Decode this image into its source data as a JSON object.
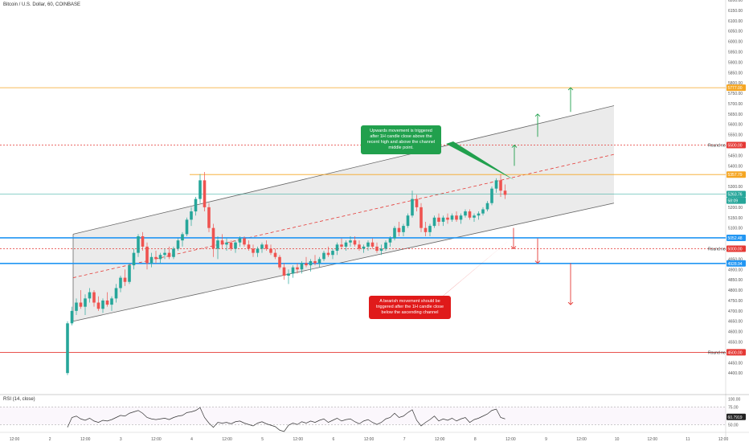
{
  "header": {
    "title": "Bitcoin / U.S. Dollar, 60, COINBASE",
    "rsi_title": "RSI (14, close)"
  },
  "annotations": {
    "upward": "Upwards movement is triggered after 1H candle close above the recent high and above the channel middle point.",
    "bearish": "A bearish movement should be triggered after the 1H candle close below the ascending channel"
  },
  "colors": {
    "up": "#26a69a",
    "down": "#ef5350",
    "orange": "#f5a623",
    "blue": "#2196f3",
    "red": "#e53935",
    "green": "#21a04d",
    "channel_fill": "#e6e6e6",
    "channel_line": "#666666"
  },
  "chart_data": {
    "type": "candlestick",
    "symbol": "Bitcoin / U.S. Dollar",
    "interval": "60",
    "exchange": "COINBASE",
    "ylim": [
      4300,
      6200
    ],
    "y_ticks": [
      4400,
      4450,
      4500,
      4550,
      4600,
      4650,
      4700,
      4750,
      4800,
      4850,
      4900,
      4950,
      5000,
      5050,
      5100,
      5150,
      5200,
      5250,
      5300,
      5350,
      5400,
      5450,
      5500,
      5550,
      5600,
      5650,
      5700,
      5750,
      5800,
      5850,
      5900,
      5950,
      6000,
      6050,
      6100,
      6150,
      6200
    ],
    "x_ticks": [
      "12:00",
      "2",
      "12:00",
      "3",
      "12:00",
      "4",
      "12:00",
      "5",
      "12:00",
      "6",
      "12:00",
      "7",
      "12:00",
      "8",
      "12:00",
      "9",
      "12:00",
      "10",
      "12:00",
      "11",
      "12:00"
    ],
    "price_labels": [
      {
        "text": "5777.00",
        "value": 5777,
        "color": "#f5a623"
      },
      {
        "text": "5500.00",
        "value": 5500,
        "color": "#e53935"
      },
      {
        "text": "5357.79",
        "value": 5357.79,
        "color": "#f5a623"
      },
      {
        "text": "5263.76",
        "value": 5263.76,
        "color": "#26a69a"
      },
      {
        "text": "58:09",
        "value": 5232,
        "color": "#26a69a"
      },
      {
        "text": "5052.48",
        "value": 5052.48,
        "color": "#2196f3"
      },
      {
        "text": "5000.00",
        "value": 5000,
        "color": "#e53935"
      },
      {
        "text": "4928.94",
        "value": 4928.94,
        "color": "#2196f3"
      },
      {
        "text": "4500.00",
        "value": 4500,
        "color": "#e53935"
      }
    ],
    "round_labels": [
      {
        "text": "Round no",
        "value": 5500
      },
      {
        "text": "Round no",
        "value": 5000
      },
      {
        "text": "Round no",
        "value": 4500
      }
    ],
    "horizontal_levels": [
      {
        "value": 5777,
        "style": "solid",
        "color": "#f5a623"
      },
      {
        "value": 5500,
        "style": "dotted",
        "color": "#e53935"
      },
      {
        "value": 5263.76,
        "style": "solid",
        "color": "#26a69a"
      },
      {
        "value": 5052.48,
        "style": "solid",
        "color": "#2196f3"
      },
      {
        "value": 5000,
        "style": "dotted",
        "color": "#e53935"
      },
      {
        "value": 4928.94,
        "style": "solid",
        "color": "#2196f3"
      },
      {
        "value": 4500,
        "style": "solid",
        "color": "#e53935"
      }
    ],
    "ohlc": [
      [
        4400,
        4650,
        4390,
        4640
      ],
      [
        4640,
        4720,
        4630,
        4700
      ],
      [
        4700,
        4760,
        4680,
        4740
      ],
      [
        4740,
        4800,
        4710,
        4720
      ],
      [
        4720,
        4780,
        4680,
        4760
      ],
      [
        4760,
        4810,
        4740,
        4790
      ],
      [
        4790,
        4800,
        4720,
        4740
      ],
      [
        4740,
        4770,
        4700,
        4710
      ],
      [
        4710,
        4760,
        4690,
        4750
      ],
      [
        4750,
        4790,
        4720,
        4730
      ],
      [
        4730,
        4770,
        4700,
        4760
      ],
      [
        4760,
        4830,
        4740,
        4810
      ],
      [
        4810,
        4870,
        4790,
        4860
      ],
      [
        4860,
        4900,
        4820,
        4840
      ],
      [
        4840,
        4930,
        4830,
        4920
      ],
      [
        4920,
        5000,
        4900,
        4980
      ],
      [
        4980,
        5070,
        4960,
        5060
      ],
      [
        5060,
        5080,
        4990,
        5010
      ],
      [
        5010,
        5030,
        4900,
        4930
      ],
      [
        4930,
        4980,
        4910,
        4960
      ],
      [
        4960,
        4990,
        4930,
        4950
      ],
      [
        4950,
        4980,
        4930,
        4970
      ],
      [
        4970,
        5000,
        4950,
        4980
      ],
      [
        4980,
        5010,
        4950,
        4960
      ],
      [
        4960,
        5010,
        4950,
        5000
      ],
      [
        5000,
        5050,
        4990,
        5040
      ],
      [
        5040,
        5080,
        5010,
        5070
      ],
      [
        5070,
        5150,
        5060,
        5140
      ],
      [
        5140,
        5200,
        5110,
        5180
      ],
      [
        5180,
        5250,
        5160,
        5240
      ],
      [
        5240,
        5360,
        5220,
        5330
      ],
      [
        5330,
        5370,
        5180,
        5200
      ],
      [
        5200,
        5220,
        5080,
        5100
      ],
      [
        5100,
        5120,
        4960,
        5000
      ],
      [
        5000,
        5060,
        4950,
        5040
      ],
      [
        5040,
        5070,
        5000,
        5020
      ],
      [
        5020,
        5050,
        4990,
        5030
      ],
      [
        5030,
        5040,
        4990,
        5000
      ],
      [
        5000,
        5040,
        4980,
        5030
      ],
      [
        5030,
        5060,
        5010,
        5050
      ],
      [
        5050,
        5060,
        5010,
        5020
      ],
      [
        5020,
        5040,
        4990,
        5000
      ],
      [
        5000,
        5020,
        4960,
        4980
      ],
      [
        4980,
        5010,
        4960,
        5000
      ],
      [
        5000,
        5030,
        4980,
        5020
      ],
      [
        5020,
        5040,
        4990,
        5000
      ],
      [
        5000,
        5020,
        4970,
        4980
      ],
      [
        4980,
        5000,
        4950,
        4960
      ],
      [
        4960,
        4970,
        4900,
        4910
      ],
      [
        4910,
        4930,
        4850,
        4870
      ],
      [
        4870,
        4900,
        4830,
        4880
      ],
      [
        4880,
        4920,
        4860,
        4910
      ],
      [
        4910,
        4930,
        4880,
        4900
      ],
      [
        4900,
        4940,
        4880,
        4930
      ],
      [
        4930,
        4960,
        4910,
        4920
      ],
      [
        4920,
        4950,
        4890,
        4940
      ],
      [
        4940,
        4970,
        4920,
        4930
      ],
      [
        4930,
        4960,
        4910,
        4950
      ],
      [
        4950,
        4990,
        4940,
        4980
      ],
      [
        4980,
        5010,
        4960,
        4970
      ],
      [
        4970,
        5000,
        4950,
        4990
      ],
      [
        4990,
        5030,
        4970,
        5020
      ],
      [
        5020,
        5050,
        5000,
        5010
      ],
      [
        5010,
        5040,
        4990,
        5030
      ],
      [
        5030,
        5060,
        5010,
        5040
      ],
      [
        5040,
        5060,
        5010,
        5020
      ],
      [
        5020,
        5040,
        4990,
        5000
      ],
      [
        5000,
        5020,
        4980,
        5010
      ],
      [
        5010,
        5040,
        4990,
        5030
      ],
      [
        5030,
        5050,
        5000,
        5010
      ],
      [
        5010,
        5030,
        4980,
        4990
      ],
      [
        4990,
        5020,
        4970,
        5000
      ],
      [
        5000,
        5040,
        4990,
        5030
      ],
      [
        5030,
        5060,
        5010,
        5050
      ],
      [
        5050,
        5110,
        5040,
        5100
      ],
      [
        5100,
        5130,
        5060,
        5080
      ],
      [
        5080,
        5120,
        5060,
        5110
      ],
      [
        5110,
        5170,
        5100,
        5160
      ],
      [
        5160,
        5280,
        5150,
        5240
      ],
      [
        5240,
        5260,
        5180,
        5200
      ],
      [
        5200,
        5220,
        5080,
        5100
      ],
      [
        5100,
        5130,
        5060,
        5080
      ],
      [
        5080,
        5120,
        5060,
        5110
      ],
      [
        5110,
        5160,
        5100,
        5150
      ],
      [
        5150,
        5170,
        5110,
        5130
      ],
      [
        5130,
        5160,
        5110,
        5150
      ],
      [
        5150,
        5170,
        5120,
        5140
      ],
      [
        5140,
        5170,
        5130,
        5160
      ],
      [
        5160,
        5180,
        5130,
        5140
      ],
      [
        5140,
        5170,
        5120,
        5160
      ],
      [
        5160,
        5190,
        5150,
        5180
      ],
      [
        5180,
        5190,
        5140,
        5150
      ],
      [
        5150,
        5170,
        5130,
        5160
      ],
      [
        5160,
        5180,
        5140,
        5170
      ],
      [
        5170,
        5200,
        5160,
        5190
      ],
      [
        5190,
        5230,
        5180,
        5220
      ],
      [
        5220,
        5300,
        5210,
        5290
      ],
      [
        5290,
        5340,
        5270,
        5330
      ],
      [
        5330,
        5360,
        5250,
        5280
      ],
      [
        5280,
        5310,
        5240,
        5260
      ]
    ],
    "rsi": {
      "ylim": [
        40,
        80
      ],
      "y_ticks": [
        50,
        75
      ],
      "levels": [
        75,
        50
      ],
      "last": 60.7919,
      "values": [
        46,
        60,
        62,
        58,
        56,
        59,
        55,
        53,
        56,
        55,
        57,
        60,
        63,
        62,
        66,
        68,
        70,
        66,
        60,
        58,
        57,
        58,
        59,
        57,
        60,
        62,
        63,
        67,
        68,
        70,
        74,
        60,
        52,
        46,
        53,
        52,
        53,
        51,
        54,
        55,
        52,
        50,
        48,
        52,
        54,
        51,
        49,
        47,
        42,
        40,
        49,
        52,
        50,
        54,
        52,
        55,
        53,
        56,
        58,
        53,
        56,
        59,
        55,
        57,
        58,
        54,
        51,
        55,
        57,
        53,
        50,
        53,
        58,
        60,
        66,
        60,
        62,
        67,
        71,
        56,
        48,
        53,
        57,
        62,
        55,
        58,
        56,
        59,
        55,
        58,
        60,
        53,
        57,
        59,
        62,
        65,
        70,
        72,
        60,
        58
      ]
    }
  }
}
